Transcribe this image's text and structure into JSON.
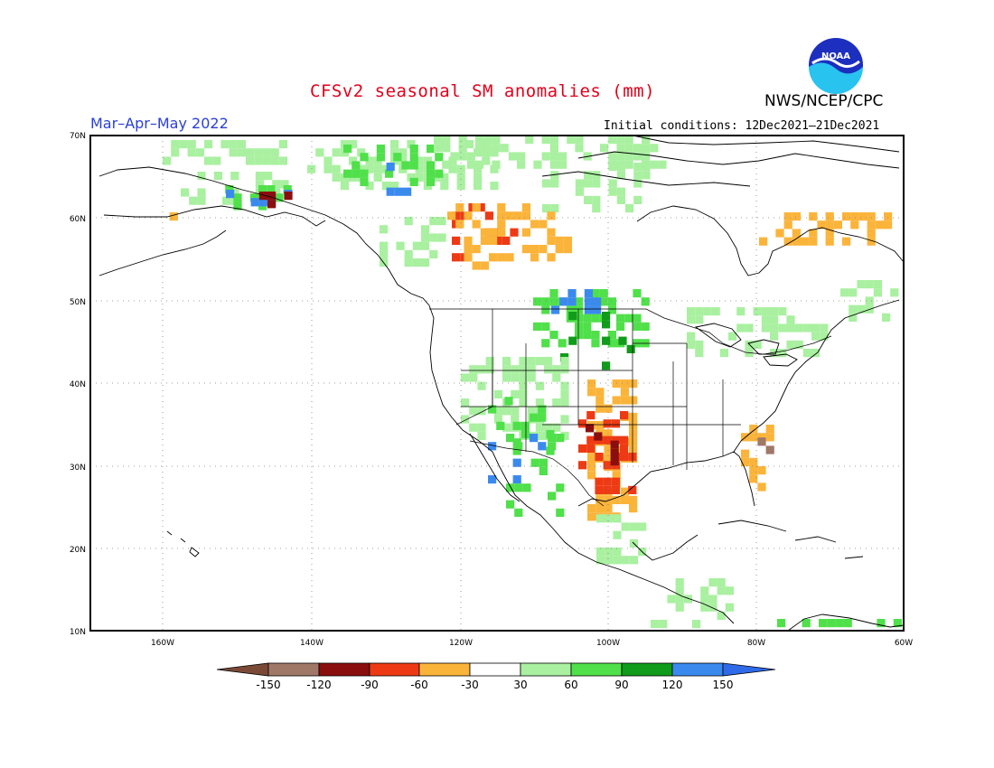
{
  "title": "CFSv2 seasonal SM anomalies (mm)",
  "agency": "NWS/NCEP/CPC",
  "logo_text": "NOAA",
  "period": "Mar–Apr–May 2022",
  "initial_conditions": "Initial conditions: 12Dec2021–21Dec2021",
  "map": {
    "lat_labels": [
      "70N",
      "60N",
      "50N",
      "40N",
      "30N",
      "20N",
      "10N"
    ],
    "lon_labels": [
      "160W",
      "140W",
      "120W",
      "100W",
      "80W",
      "60W"
    ]
  },
  "colorbar": {
    "tick_labels": [
      "-150",
      "-120",
      "-90",
      "-60",
      "-30",
      "30",
      "60",
      "90",
      "120",
      "150"
    ],
    "colors": [
      "#7a4a36",
      "#a07868",
      "#8b0e0e",
      "#ee3a14",
      "#fbb43a",
      "#ffffff",
      "#a9f0a0",
      "#4fe04a",
      "#109b1a",
      "#3a8aee",
      "#2f6ae8"
    ]
  },
  "legend_colors": {
    "brown": "#a07868",
    "dark_red": "#8b0e0e",
    "red": "#ee3a14",
    "orange": "#fbb43a",
    "light_green": "#a9f0a0",
    "green": "#4fe04a",
    "dark_green": "#109b1a",
    "blue": "#3a8aee"
  }
}
